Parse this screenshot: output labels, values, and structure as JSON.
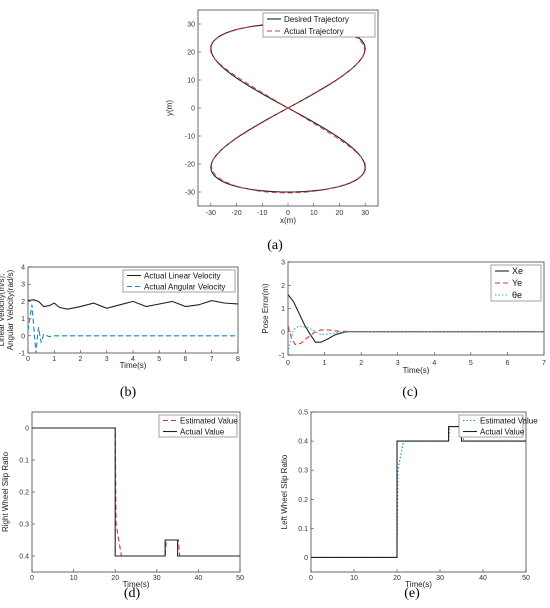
{
  "captions": [
    "(a)",
    "(b)",
    "(c)",
    "(d)",
    "(e)"
  ],
  "colors": {
    "black": "#222222",
    "red": "#d43a3a",
    "blue": "#1a86c8",
    "cyan": "#23b8d8"
  },
  "chart_data": [
    {
      "id": "a",
      "type": "line",
      "xlabel": "x(m)",
      "ylabel": "y(m)",
      "xlim": [
        -35,
        35
      ],
      "ylim": [
        -35,
        35
      ],
      "xticks": [
        -30,
        -20,
        -10,
        0,
        10,
        20,
        30
      ],
      "yticks": [
        -30,
        -20,
        -10,
        0,
        10,
        20,
        30
      ],
      "legend_position": "top-right",
      "curve": {
        "shape": "figure-eight",
        "x": "30*sin(2t)",
        "y": "30*sin(t)",
        "t_range_deg": [
          0,
          360
        ]
      },
      "series": [
        {
          "name": "Desired Trajectory",
          "style": "solid",
          "color": "#222222"
        },
        {
          "name": "Actual Trajectory",
          "style": "dashed",
          "color": "#d43a3a"
        }
      ]
    },
    {
      "id": "b",
      "type": "line",
      "xlabel": "Time(s)",
      "ylabel": "Linear Velocity(m/s); Angular Velocity(rad/s)",
      "xlim": [
        0,
        8
      ],
      "ylim": [
        -1,
        4
      ],
      "xticks": [
        0,
        1,
        2,
        3,
        4,
        5,
        6,
        7,
        8
      ],
      "yticks": [
        -1,
        0,
        1,
        2,
        3,
        4
      ],
      "legend_position": "top-right",
      "series": [
        {
          "name": "Actual Linear Velocity",
          "style": "solid",
          "color": "#222222",
          "x": [
            0,
            0.2,
            0.4,
            0.6,
            0.8,
            1.0,
            1.2,
            1.5,
            2.0,
            2.5,
            3.0,
            3.5,
            4.0,
            4.5,
            5.0,
            5.5,
            6.0,
            6.5,
            7.0,
            7.5,
            8.0
          ],
          "y": [
            2.05,
            2.1,
            2.0,
            1.7,
            1.75,
            1.9,
            1.65,
            1.55,
            1.7,
            1.9,
            1.6,
            1.8,
            2.0,
            1.7,
            1.85,
            2.0,
            1.7,
            1.8,
            2.05,
            1.9,
            1.85
          ]
        },
        {
          "name": "Actual Angular Velocity",
          "style": "dashed",
          "color": "#1a86c8",
          "x": [
            0,
            0.15,
            0.3,
            0.4,
            0.5,
            0.6,
            0.8,
            1.0,
            2.0,
            3.0,
            4.0,
            5.0,
            6.0,
            7.0,
            8.0
          ],
          "y": [
            0.3,
            1.8,
            -1.0,
            0.5,
            -0.4,
            0.1,
            -0.05,
            0.0,
            0.0,
            0.0,
            0.0,
            0.0,
            0.0,
            0.0,
            0.0
          ]
        }
      ]
    },
    {
      "id": "c",
      "type": "line",
      "xlabel": "Time(s)",
      "ylabel": "Pose Error(m)",
      "xlim": [
        0,
        7
      ],
      "ylim": [
        -1,
        3
      ],
      "xticks": [
        0,
        1,
        2,
        3,
        4,
        5,
        6,
        7
      ],
      "yticks": [
        -1,
        0,
        1,
        2,
        3
      ],
      "legend_position": "top-right",
      "series": [
        {
          "name": "Xe",
          "style": "solid",
          "color": "#222222",
          "x": [
            0,
            0.15,
            0.3,
            0.45,
            0.6,
            0.75,
            0.9,
            1.1,
            1.3,
            1.6,
            2.0,
            3.0,
            4.0,
            5.0,
            6.0,
            7.0
          ],
          "y": [
            1.6,
            1.3,
            0.8,
            0.3,
            -0.1,
            -0.45,
            -0.45,
            -0.3,
            -0.12,
            0.0,
            0.0,
            0.0,
            0.0,
            0.0,
            0.0,
            0.0
          ]
        },
        {
          "name": "Ye",
          "style": "dashed",
          "color": "#d43a3a",
          "x": [
            0,
            0.1,
            0.2,
            0.35,
            0.5,
            0.7,
            0.9,
            1.1,
            1.4,
            2.0,
            7.0
          ],
          "y": [
            0.25,
            -0.3,
            -0.55,
            -0.5,
            -0.3,
            -0.05,
            0.08,
            0.08,
            0.02,
            0.0,
            0.0
          ]
        },
        {
          "name": "θe",
          "style": "dotted",
          "color": "#23b8d8",
          "x": [
            0,
            0.05,
            0.15,
            0.3,
            0.5,
            0.7,
            0.9,
            1.1,
            1.4,
            2.0,
            7.0
          ],
          "y": [
            -0.9,
            -0.5,
            0.1,
            0.25,
            0.2,
            0.05,
            -0.12,
            -0.1,
            -0.02,
            0.0,
            0.0
          ]
        }
      ]
    },
    {
      "id": "d",
      "type": "line",
      "xlabel": "Time(s)",
      "ylabel": "Right Wheel Slip Ratio",
      "xlim": [
        0,
        50
      ],
      "ylim": [
        -0.45,
        0.05
      ],
      "xticks": [
        0,
        10,
        20,
        30,
        40,
        50
      ],
      "yticks": [
        0,
        -0.1,
        -0.2,
        -0.3,
        -0.4
      ],
      "ytick_labels": [
        "0",
        "0.1",
        "0.2",
        "0.3",
        "0.4"
      ],
      "legend_position": "top-right",
      "series": [
        {
          "name": "Estimated Value",
          "style": "dashed",
          "color": "#d43a3a",
          "x": [
            0,
            20,
            20.2,
            21.5,
            32,
            32.3,
            35.2,
            35.5,
            50
          ],
          "y": [
            0,
            0,
            -0.3,
            -0.4,
            -0.4,
            -0.35,
            -0.35,
            -0.4,
            -0.4
          ]
        },
        {
          "name": "Actual Value",
          "style": "solid",
          "color": "#222222",
          "x": [
            0,
            20,
            20,
            32,
            32,
            35,
            35,
            50
          ],
          "y": [
            0,
            0,
            -0.4,
            -0.4,
            -0.35,
            -0.35,
            -0.4,
            -0.4
          ]
        }
      ]
    },
    {
      "id": "e",
      "type": "line",
      "xlabel": "Time(s)",
      "ylabel": "Left Wheel Slip Ratio",
      "xlim": [
        0,
        50
      ],
      "ylim": [
        -0.05,
        0.5
      ],
      "xticks": [
        0,
        10,
        20,
        30,
        40,
        50
      ],
      "yticks": [
        0,
        0.1,
        0.2,
        0.3,
        0.4,
        0.5
      ],
      "legend_position": "top-right",
      "series": [
        {
          "name": "Estimated Value",
          "style": "dotted",
          "color": "#1a86c8",
          "x": [
            0,
            20,
            20.2,
            21.5,
            32,
            32.3,
            35.2,
            35.5,
            50
          ],
          "y": [
            0,
            0,
            0.3,
            0.4,
            0.4,
            0.45,
            0.45,
            0.4,
            0.4
          ]
        },
        {
          "name": "Actual Value",
          "style": "solid",
          "color": "#222222",
          "x": [
            0,
            20,
            20,
            32,
            32,
            35,
            35,
            50
          ],
          "y": [
            0,
            0,
            0.4,
            0.4,
            0.45,
            0.45,
            0.4,
            0.4
          ]
        }
      ]
    }
  ]
}
